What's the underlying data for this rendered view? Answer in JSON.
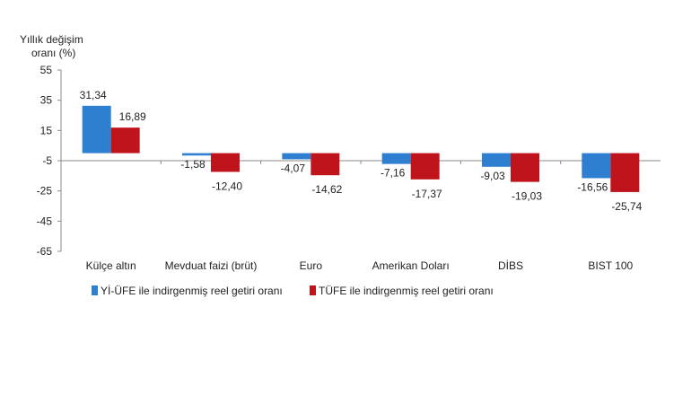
{
  "chart_data": {
    "type": "bar",
    "ylabel_lines": [
      "Yıllık değişim",
      "oranı (%)"
    ],
    "categories": [
      "Külçe altın",
      "Mevduat faizi (brüt)",
      "Euro",
      "Amerikan Doları",
      "DİBS",
      "BIST 100"
    ],
    "series": [
      {
        "name": "Yİ-ÜFE ile indirgenmiş reel getiri oranı",
        "color": "#2e7fcf",
        "values": [
          31.34,
          -1.58,
          -4.07,
          -7.16,
          -9.03,
          -16.56
        ],
        "labels": [
          "31,34",
          "-1,58",
          "-4,07",
          "-7,16",
          "-9,03",
          "-16,56"
        ]
      },
      {
        "name": "TÜFE ile indirgenmiş reel getiri oranı",
        "color": "#c0141c",
        "values": [
          16.89,
          -12.4,
          -14.62,
          -17.37,
          -19.03,
          -25.74
        ],
        "labels": [
          "16,89",
          "-12,40",
          "-14,62",
          "-17,37",
          "-19,03",
          "-25,74"
        ]
      }
    ],
    "yticks": [
      55,
      35,
      15,
      -5,
      -25,
      -45,
      -65
    ],
    "ylim": [
      -65,
      55
    ],
    "category_axis_at": -5,
    "grid": false,
    "legend_position": "bottom"
  }
}
